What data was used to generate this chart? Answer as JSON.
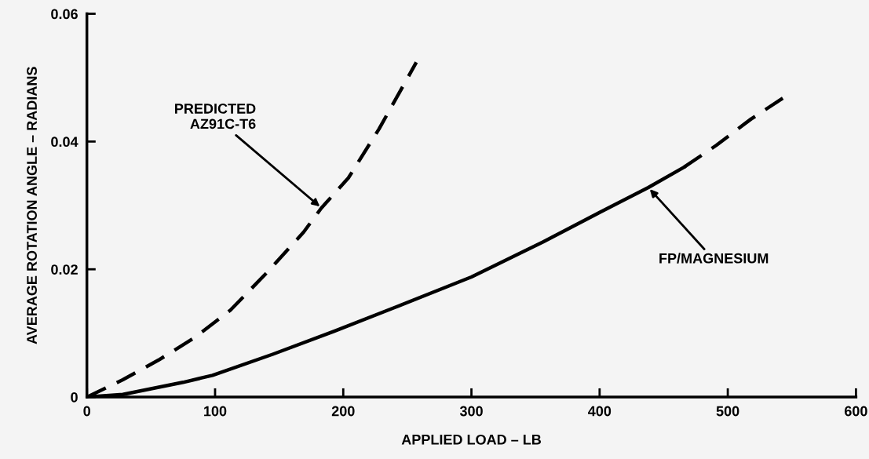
{
  "chart_data": {
    "type": "line",
    "xlabel": "APPLIED LOAD – LB",
    "ylabel": "AVERAGE ROTATION ANGLE – RADIANS",
    "xlim": [
      0,
      600
    ],
    "xticks": [
      0,
      100,
      200,
      300,
      400,
      500,
      600
    ],
    "ylim": [
      0,
      0.06
    ],
    "yticks": [
      0,
      0.02,
      0.04,
      0.06
    ],
    "grid": false,
    "legend": false,
    "marker": "none",
    "series": [
      {
        "color": "#000000",
        "line_style": "dashed",
        "x": [
          0,
          28,
          56,
          84,
          112,
          140,
          169,
          183,
          204,
          228,
          257
        ],
        "values": [
          0,
          0.0027,
          0.0058,
          0.0093,
          0.0136,
          0.0194,
          0.0258,
          0.0296,
          0.0343,
          0.042,
          0.0524
        ]
      },
      {
        "color": "#000000",
        "line_style": "solid",
        "x": [
          0,
          28,
          75,
          98,
          145,
          193,
          240,
          300,
          356,
          400,
          438,
          466
        ],
        "values": [
          0,
          0.0004,
          0.0023,
          0.0034,
          0.0067,
          0.0103,
          0.014,
          0.0188,
          0.0243,
          0.0289,
          0.0328,
          0.036
        ]
      },
      {
        "color": "#000000",
        "line_style": "dashed",
        "x": [
          466,
          491,
          518,
          546
        ],
        "values": [
          0.036,
          0.0394,
          0.0435,
          0.0472
        ]
      }
    ],
    "annotations": [
      {
        "text": "PREDICTED\nAZ91C-T6",
        "x": 183,
        "y": 0.0296
      },
      {
        "text": "FP/MAGNESIUM",
        "x": 438,
        "y": 0.0328
      }
    ]
  }
}
